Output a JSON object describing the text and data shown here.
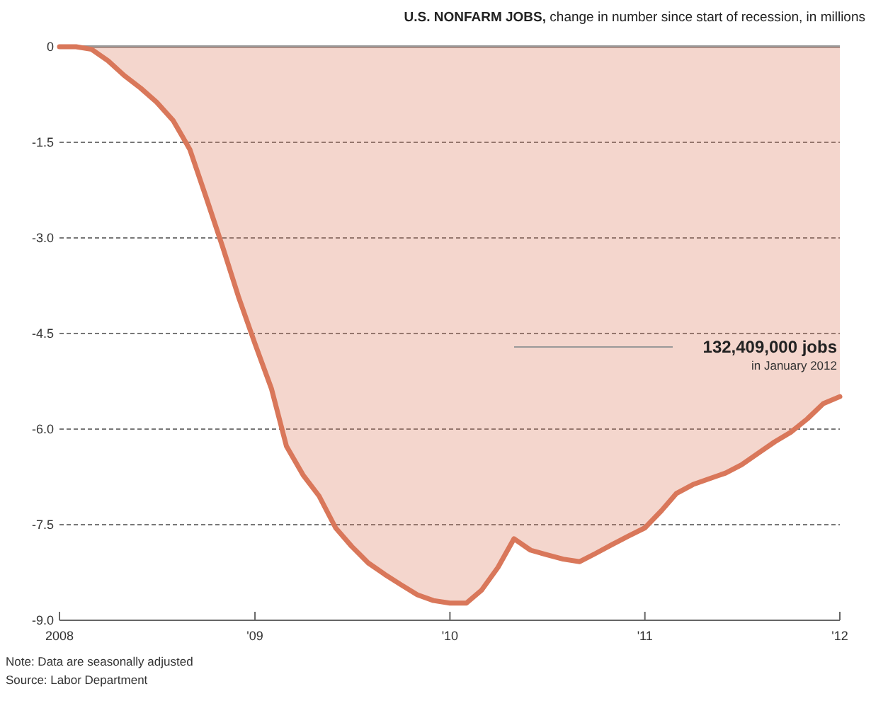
{
  "chart_data": {
    "type": "area",
    "title": "U.S. NONFARM JOBS,",
    "subtitle": "change in number since start of recession, in millions",
    "x": [
      "2008-01",
      "2008-02",
      "2008-03",
      "2008-04",
      "2008-05",
      "2008-06",
      "2008-07",
      "2008-08",
      "2008-09",
      "2008-10",
      "2008-11",
      "2008-12",
      "2009-01",
      "2009-02",
      "2009-03",
      "2009-04",
      "2009-05",
      "2009-06",
      "2009-07",
      "2009-08",
      "2009-09",
      "2009-10",
      "2009-11",
      "2009-12",
      "2010-01",
      "2010-02",
      "2010-03",
      "2010-04",
      "2010-05",
      "2010-06",
      "2010-07",
      "2010-08",
      "2010-09",
      "2010-10",
      "2010-11",
      "2010-12",
      "2011-01",
      "2011-02",
      "2011-03",
      "2011-04",
      "2011-05",
      "2011-06",
      "2011-07",
      "2011-08",
      "2011-09",
      "2011-10",
      "2011-11",
      "2011-12",
      "2012-01"
    ],
    "series": [
      {
        "color": "#d9775a",
        "values": [
          0,
          0,
          -0.04,
          -0.22,
          -0.45,
          -0.65,
          -0.87,
          -1.16,
          -1.61,
          -2.35,
          -3.13,
          -3.92,
          -4.66,
          -5.37,
          -6.27,
          -6.72,
          -7.05,
          -7.55,
          -7.84,
          -8.1,
          -8.28,
          -8.44,
          -8.6,
          -8.69,
          -8.73,
          -8.73,
          -8.53,
          -8.17,
          -7.72,
          -7.9,
          -7.97,
          -8.04,
          -8.08,
          -7.95,
          -7.81,
          -7.68,
          -7.55,
          -7.28,
          -7.01,
          -6.87,
          -6.78,
          -6.69,
          -6.56,
          -6.38,
          -6.2,
          -6.05,
          -5.84,
          -5.6,
          -5.49
        ]
      }
    ],
    "xlim": [
      "2008-01",
      "2012-01"
    ],
    "xticks": [
      {
        "value": "2008-01",
        "label": "2008"
      },
      {
        "value": "2009-01",
        "label": "'09"
      },
      {
        "value": "2010-01",
        "label": "'10"
      },
      {
        "value": "2011-01",
        "label": "'11"
      },
      {
        "value": "2012-01",
        "label": "'12"
      }
    ],
    "ylim": [
      -9,
      0
    ],
    "yticks": [
      {
        "value": 0,
        "label": "0"
      },
      {
        "value": -1.5,
        "label": "-1.5"
      },
      {
        "value": -3,
        "label": "-3.0"
      },
      {
        "value": -4.5,
        "label": "-4.5"
      },
      {
        "value": -6,
        "label": "-6.0"
      },
      {
        "value": -7.5,
        "label": "-7.5"
      },
      {
        "value": -9,
        "label": "-9.0"
      }
    ],
    "grid": "y",
    "marker": "none",
    "line_style": "solid",
    "annotations": [
      {
        "text": "132,409,000 jobs",
        "x": "2012-01",
        "y": -5.49
      },
      {
        "text": "in January 2012",
        "x": "2012-01",
        "y": -5.49
      },
      "Note: Data are seasonally adjusted",
      "Source: Labor Department"
    ]
  }
}
